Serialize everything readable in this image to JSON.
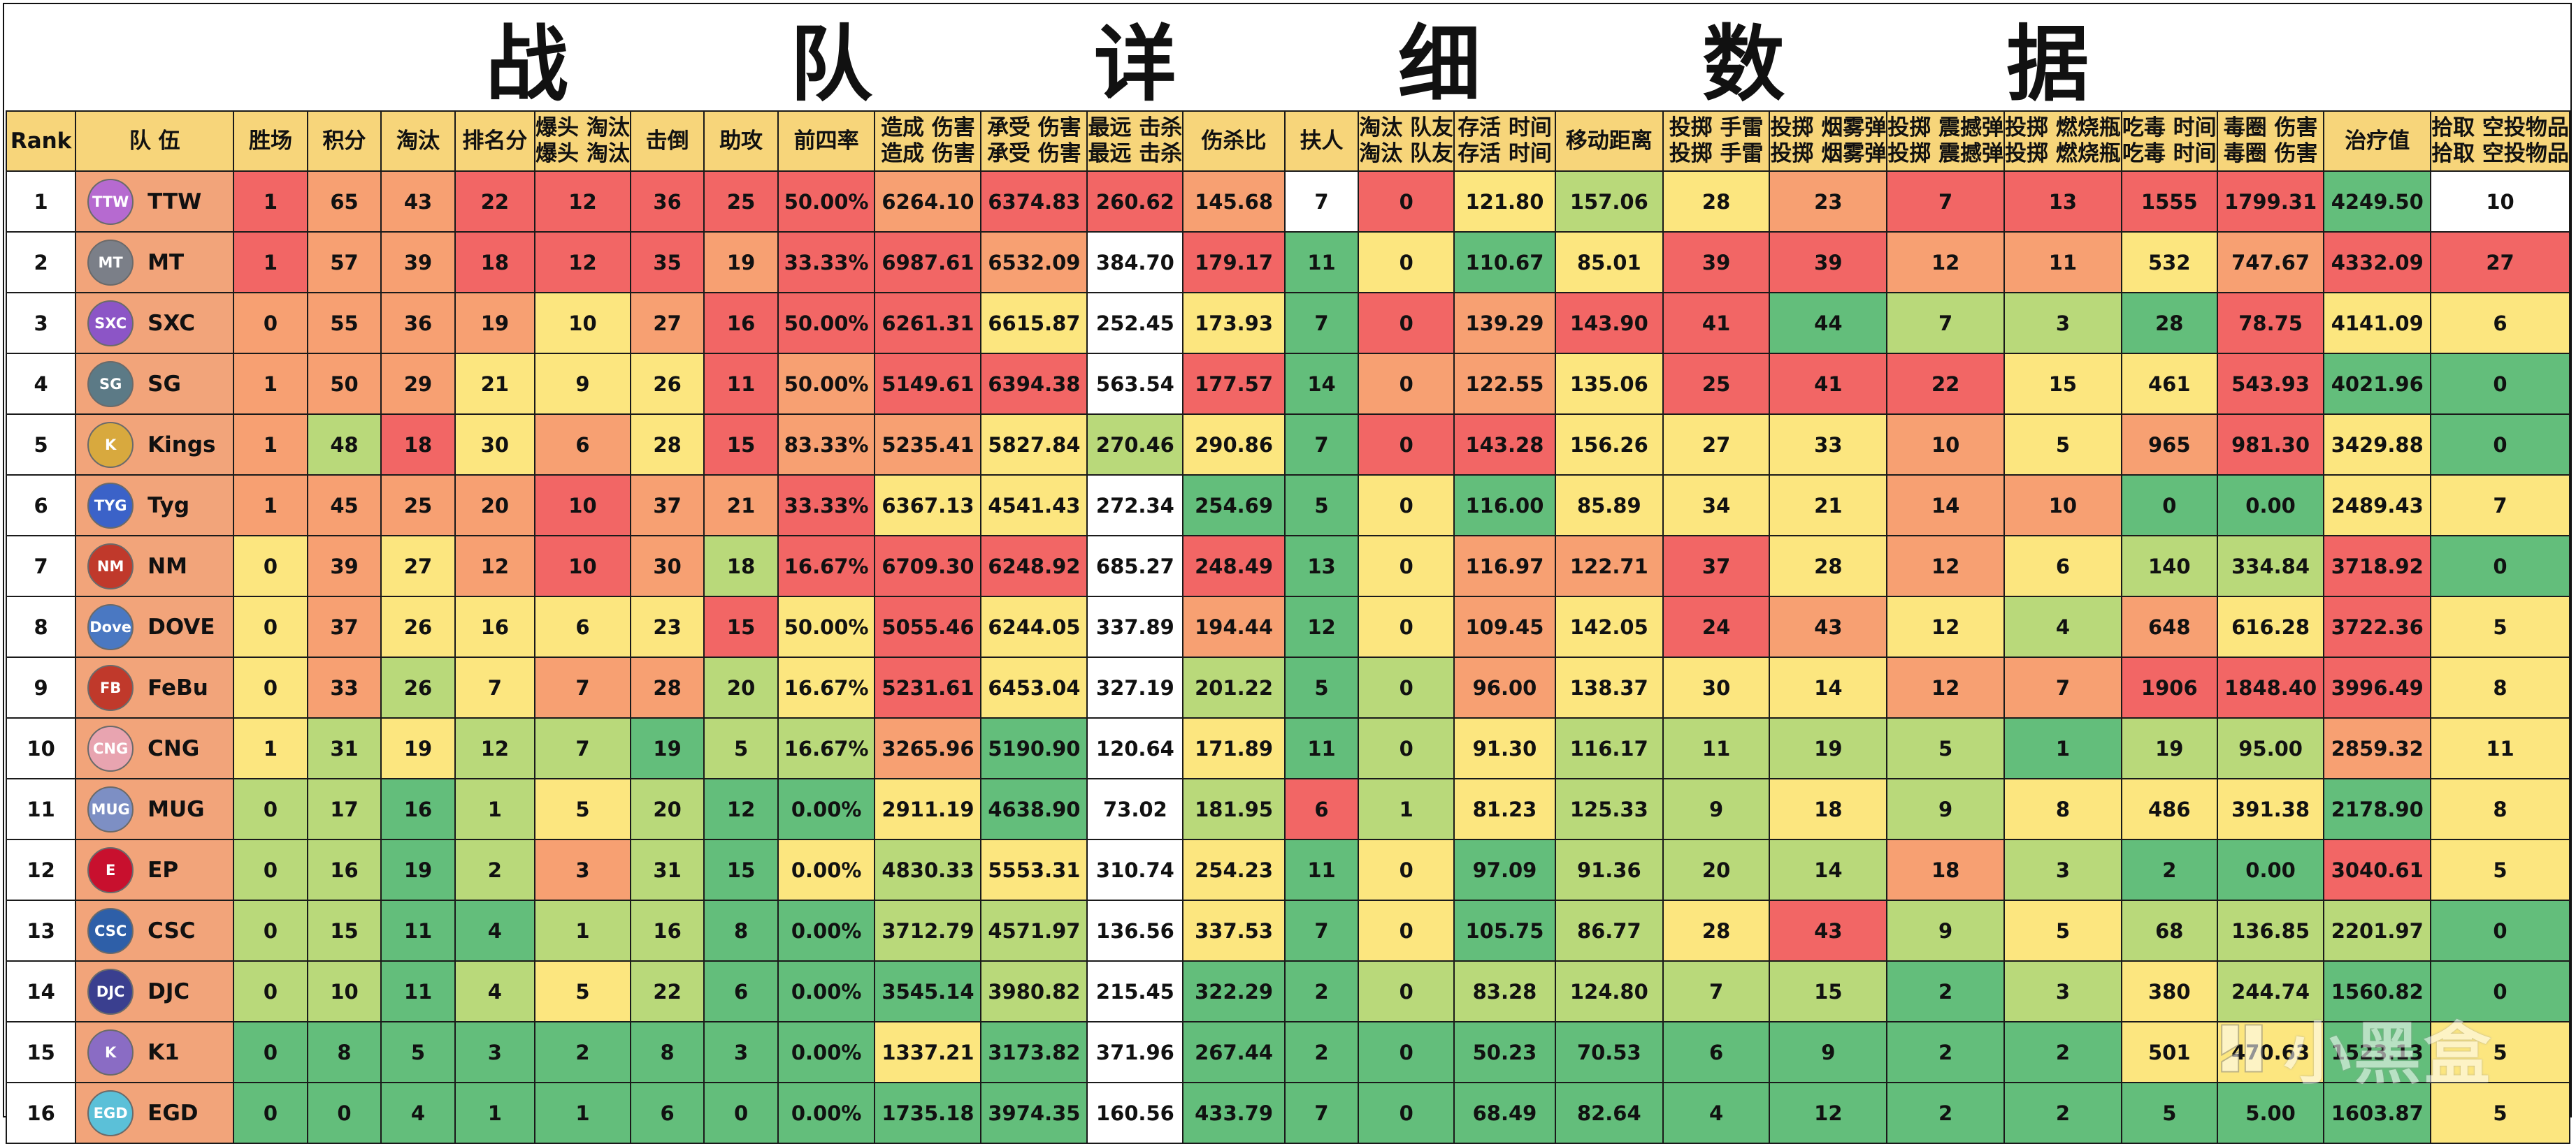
{
  "title": "战 队 详 细 数 据",
  "headers": [
    "Rank",
    "队 伍",
    "胜场",
    "积分",
    "淘汰",
    "排名分",
    "爆头\n淘汰",
    "击倒",
    "助攻",
    "前四率",
    "造成\n伤害",
    "承受\n伤害",
    "最远\n击杀",
    "伤杀比",
    "扶人",
    "淘汰\n队友",
    "存活\n时间",
    "移动距离",
    "投掷\n手雷",
    "投掷\n烟雾弹",
    "投掷\n震撼弹",
    "投掷\n燃烧瓶",
    "吃毒\n时间",
    "毒圈\n伤害",
    "治疗值",
    "拾取\n空投物品"
  ],
  "rows": [
    [
      "1",
      "TTW",
      "1",
      "65",
      "43",
      "22",
      "12",
      "36",
      "25",
      "50.00%",
      "6264.10",
      "6374.83",
      "260.62",
      "145.68",
      "7",
      "0",
      "121.80",
      "157.06",
      "28",
      "23",
      "7",
      "13",
      "1555",
      "1799.31",
      "4249.50",
      "10"
    ],
    [
      "2",
      "MT",
      "1",
      "57",
      "39",
      "18",
      "12",
      "35",
      "19",
      "33.33%",
      "6987.61",
      "6532.09",
      "384.70",
      "179.17",
      "11",
      "0",
      "110.67",
      "85.01",
      "39",
      "39",
      "12",
      "11",
      "532",
      "747.67",
      "4332.09",
      "27"
    ],
    [
      "3",
      "SXC",
      "0",
      "55",
      "36",
      "19",
      "10",
      "27",
      "16",
      "50.00%",
      "6261.31",
      "6615.87",
      "252.45",
      "173.93",
      "7",
      "0",
      "139.29",
      "143.90",
      "41",
      "44",
      "7",
      "3",
      "28",
      "78.75",
      "4141.09",
      "6"
    ],
    [
      "4",
      "SG",
      "1",
      "50",
      "29",
      "21",
      "9",
      "26",
      "11",
      "50.00%",
      "5149.61",
      "6394.38",
      "563.54",
      "177.57",
      "14",
      "0",
      "122.55",
      "135.06",
      "25",
      "41",
      "22",
      "15",
      "461",
      "543.93",
      "4021.96",
      "0"
    ],
    [
      "5",
      "Kings",
      "1",
      "48",
      "18",
      "30",
      "6",
      "28",
      "15",
      "83.33%",
      "5235.41",
      "5827.84",
      "270.46",
      "290.86",
      "7",
      "0",
      "143.28",
      "156.26",
      "27",
      "33",
      "10",
      "5",
      "965",
      "981.30",
      "3429.88",
      "0"
    ],
    [
      "6",
      "Tyg",
      "1",
      "45",
      "25",
      "20",
      "10",
      "37",
      "21",
      "33.33%",
      "6367.13",
      "4541.43",
      "272.34",
      "254.69",
      "5",
      "0",
      "116.00",
      "85.89",
      "34",
      "21",
      "14",
      "10",
      "0",
      "0.00",
      "2489.43",
      "7"
    ],
    [
      "7",
      "NM",
      "0",
      "39",
      "27",
      "12",
      "10",
      "30",
      "18",
      "16.67%",
      "6709.30",
      "6248.92",
      "685.27",
      "248.49",
      "13",
      "0",
      "116.97",
      "122.71",
      "37",
      "28",
      "12",
      "6",
      "140",
      "334.84",
      "3718.92",
      "0"
    ],
    [
      "8",
      "DOVE",
      "0",
      "37",
      "26",
      "16",
      "6",
      "23",
      "15",
      "50.00%",
      "5055.46",
      "6244.05",
      "337.89",
      "194.44",
      "12",
      "0",
      "109.45",
      "142.05",
      "24",
      "43",
      "12",
      "4",
      "648",
      "616.28",
      "3722.36",
      "5"
    ],
    [
      "9",
      "FeBu",
      "0",
      "33",
      "26",
      "7",
      "7",
      "28",
      "20",
      "16.67%",
      "5231.61",
      "6453.04",
      "327.19",
      "201.22",
      "5",
      "0",
      "96.00",
      "138.37",
      "30",
      "14",
      "12",
      "7",
      "1906",
      "1848.40",
      "3996.49",
      "8"
    ],
    [
      "10",
      "CNG",
      "1",
      "31",
      "19",
      "12",
      "7",
      "19",
      "5",
      "16.67%",
      "3265.96",
      "5190.90",
      "120.64",
      "171.89",
      "11",
      "0",
      "91.30",
      "116.17",
      "11",
      "19",
      "5",
      "1",
      "19",
      "95.00",
      "2859.32",
      "11"
    ],
    [
      "11",
      "MUG",
      "0",
      "17",
      "16",
      "1",
      "5",
      "20",
      "12",
      "0.00%",
      "2911.19",
      "4638.90",
      "73.02",
      "181.95",
      "6",
      "1",
      "81.23",
      "125.33",
      "9",
      "18",
      "9",
      "8",
      "486",
      "391.38",
      "2178.90",
      "8"
    ],
    [
      "12",
      "EP",
      "0",
      "16",
      "19",
      "2",
      "3",
      "31",
      "15",
      "0.00%",
      "4830.33",
      "5553.31",
      "310.74",
      "254.23",
      "11",
      "0",
      "97.09",
      "91.36",
      "20",
      "14",
      "18",
      "3",
      "2",
      "0.00",
      "3040.61",
      "5"
    ],
    [
      "13",
      "CSC",
      "0",
      "15",
      "11",
      "4",
      "1",
      "16",
      "8",
      "0.00%",
      "3712.79",
      "4571.97",
      "136.56",
      "337.53",
      "7",
      "0",
      "105.75",
      "86.77",
      "28",
      "43",
      "9",
      "5",
      "68",
      "136.85",
      "2201.97",
      "0"
    ],
    [
      "14",
      "DJC",
      "0",
      "10",
      "11",
      "4",
      "5",
      "22",
      "6",
      "0.00%",
      "3545.14",
      "3980.82",
      "215.45",
      "322.29",
      "2",
      "0",
      "83.28",
      "124.80",
      "7",
      "15",
      "2",
      "3",
      "380",
      "244.74",
      "1560.82",
      "0"
    ],
    [
      "15",
      "K1",
      "0",
      "8",
      "5",
      "3",
      "2",
      "8",
      "3",
      "0.00%",
      "1337.21",
      "3173.82",
      "371.96",
      "267.44",
      "2",
      "0",
      "50.23",
      "70.53",
      "6",
      "9",
      "2",
      "2",
      "501",
      "470.63",
      "1523.13",
      "5"
    ],
    [
      "16",
      "EGD",
      "0",
      "0",
      "4",
      "1",
      "1",
      "6",
      "0",
      "0.00%",
      "1735.18",
      "3974.35",
      "160.56",
      "433.79",
      "7",
      "0",
      "68.49",
      "82.64",
      "4",
      "12",
      "2",
      "2",
      "5",
      "5.00",
      "1603.87",
      "5"
    ]
  ],
  "cell_colors": [
    [
      "r",
      "r",
      "o",
      "o",
      "r",
      "r",
      "r",
      "r",
      "r",
      "o",
      "r",
      "r",
      "o",
      "w",
      "r",
      "y",
      "lg",
      "y",
      "o",
      "r",
      "r",
      "r",
      "r",
      "g",
      "w"
    ],
    [
      "r",
      "r",
      "o",
      "o",
      "r",
      "r",
      "r",
      "o",
      "r",
      "r",
      "o",
      "w",
      "r",
      "g",
      "y",
      "g",
      "y",
      "r",
      "r",
      "o",
      "o",
      "y",
      "o",
      "r",
      "r"
    ],
    [
      "g",
      "o",
      "o",
      "o",
      "o",
      "y",
      "o",
      "r",
      "r",
      "r",
      "y",
      "w",
      "y",
      "g",
      "r",
      "o",
      "r",
      "r",
      "g",
      "lg",
      "lg",
      "g",
      "r",
      "y",
      "y"
    ],
    [
      "r",
      "o",
      "o",
      "o",
      "y",
      "y",
      "y",
      "r",
      "o",
      "r",
      "r",
      "w",
      "r",
      "g",
      "o",
      "o",
      "y",
      "r",
      "r",
      "r",
      "y",
      "y",
      "r",
      "g",
      "g"
    ],
    [
      "r",
      "o",
      "lg",
      "r",
      "y",
      "o",
      "y",
      "r",
      "o",
      "o",
      "y",
      "lg",
      "y",
      "g",
      "r",
      "r",
      "y",
      "y",
      "y",
      "o",
      "y",
      "o",
      "r",
      "y",
      "g"
    ],
    [
      "r",
      "o",
      "o",
      "o",
      "o",
      "r",
      "o",
      "o",
      "r",
      "y",
      "y",
      "w",
      "g",
      "g",
      "y",
      "g",
      "y",
      "y",
      "y",
      "o",
      "o",
      "g",
      "g",
      "y",
      "y"
    ],
    [
      "g",
      "y",
      "o",
      "y",
      "o",
      "r",
      "o",
      "lg",
      "r",
      "r",
      "r",
      "w",
      "r",
      "g",
      "y",
      "o",
      "o",
      "r",
      "y",
      "o",
      "y",
      "lg",
      "lg",
      "r",
      "g"
    ],
    [
      "g",
      "y",
      "o",
      "y",
      "y",
      "y",
      "y",
      "r",
      "y",
      "r",
      "y",
      "w",
      "o",
      "g",
      "y",
      "o",
      "y",
      "r",
      "o",
      "y",
      "lg",
      "o",
      "y",
      "r",
      "y"
    ],
    [
      "g",
      "y",
      "o",
      "lg",
      "y",
      "o",
      "o",
      "lg",
      "y",
      "r",
      "y",
      "w",
      "lg",
      "g",
      "lg",
      "o",
      "y",
      "y",
      "y",
      "o",
      "o",
      "r",
      "r",
      "r",
      "y"
    ],
    [
      "r",
      "y",
      "lg",
      "y",
      "lg",
      "lg",
      "g",
      "lg",
      "lg",
      "o",
      "g",
      "w",
      "y",
      "g",
      "lg",
      "y",
      "lg",
      "lg",
      "lg",
      "lg",
      "g",
      "lg",
      "lg",
      "o",
      "y"
    ],
    [
      "g",
      "lg",
      "lg",
      "g",
      "lg",
      "y",
      "lg",
      "g",
      "g",
      "y",
      "g",
      "w",
      "lg",
      "r",
      "lg",
      "y",
      "lg",
      "lg",
      "y",
      "lg",
      "y",
      "y",
      "y",
      "g",
      "y"
    ],
    [
      "g",
      "lg",
      "lg",
      "g",
      "lg",
      "o",
      "lg",
      "g",
      "y",
      "lg",
      "y",
      "w",
      "y",
      "g",
      "y",
      "g",
      "lg",
      "lg",
      "lg",
      "o",
      "lg",
      "g",
      "g",
      "r",
      "y"
    ],
    [
      "g",
      "lg",
      "lg",
      "g",
      "g",
      "lg",
      "lg",
      "g",
      "g",
      "lg",
      "lg",
      "w",
      "y",
      "g",
      "y",
      "g",
      "lg",
      "y",
      "r",
      "lg",
      "y",
      "lg",
      "lg",
      "lg",
      "g"
    ],
    [
      "g",
      "lg",
      "lg",
      "g",
      "lg",
      "y",
      "lg",
      "g",
      "g",
      "g",
      "lg",
      "w",
      "g",
      "g",
      "lg",
      "lg",
      "lg",
      "lg",
      "lg",
      "g",
      "lg",
      "y",
      "lg",
      "g",
      "g"
    ],
    [
      "g",
      "g",
      "g",
      "g",
      "g",
      "g",
      "g",
      "g",
      "g",
      "y",
      "g",
      "w",
      "g",
      "g",
      "g",
      "g",
      "g",
      "g",
      "g",
      "g",
      "g",
      "y",
      "y",
      "g",
      "y"
    ],
    [
      "g",
      "g",
      "g",
      "g",
      "g",
      "g",
      "g",
      "g",
      "g",
      "g",
      "g",
      "w",
      "g",
      "g",
      "g",
      "g",
      "g",
      "g",
      "g",
      "g",
      "g",
      "g",
      "g",
      "g",
      "y"
    ]
  ],
  "palette": {
    "r": "#f26665",
    "o": "#f7a072",
    "y": "#fce67f",
    "lg": "#b9d97a",
    "g": "#63be7b",
    "w": "#ffffff"
  },
  "logos": [
    {
      "icon": "ttw-logo-icon",
      "bg": "#b66ad0",
      "abbr": "TTW"
    },
    {
      "icon": "mt-logo-icon",
      "bg": "#7b7f88",
      "abbr": "MT"
    },
    {
      "icon": "sxc-logo-icon",
      "bg": "#8c55c6",
      "abbr": "SXC"
    },
    {
      "icon": "sg-logo-icon",
      "bg": "#5c7a86",
      "abbr": "SG"
    },
    {
      "icon": "kings-logo-icon",
      "bg": "#d8a93e",
      "abbr": "K"
    },
    {
      "icon": "tyg-logo-icon",
      "bg": "#3b62c8",
      "abbr": "TYG"
    },
    {
      "icon": "nm-logo-icon",
      "bg": "#c0392b",
      "abbr": "NM"
    },
    {
      "icon": "dove-logo-icon",
      "bg": "#4a78c2",
      "abbr": "Dove"
    },
    {
      "icon": "febu-logo-icon",
      "bg": "#c0392b",
      "abbr": "FB"
    },
    {
      "icon": "cng-logo-icon",
      "bg": "#e8a4b0",
      "abbr": "CNG"
    },
    {
      "icon": "mug-logo-icon",
      "bg": "#7d8fc4",
      "abbr": "MUG"
    },
    {
      "icon": "ep-logo-icon",
      "bg": "#c8102e",
      "abbr": "E"
    },
    {
      "icon": "csc-logo-icon",
      "bg": "#2e5fa8",
      "abbr": "CSC"
    },
    {
      "icon": "djc-logo-icon",
      "bg": "#3a3f8f",
      "abbr": "DJC"
    },
    {
      "icon": "k1-logo-icon",
      "bg": "#8a6cc4",
      "abbr": "K"
    },
    {
      "icon": "egd-logo-icon",
      "bg": "#5bc0d8",
      "abbr": "EGD"
    }
  ],
  "watermark": "小黑盒"
}
